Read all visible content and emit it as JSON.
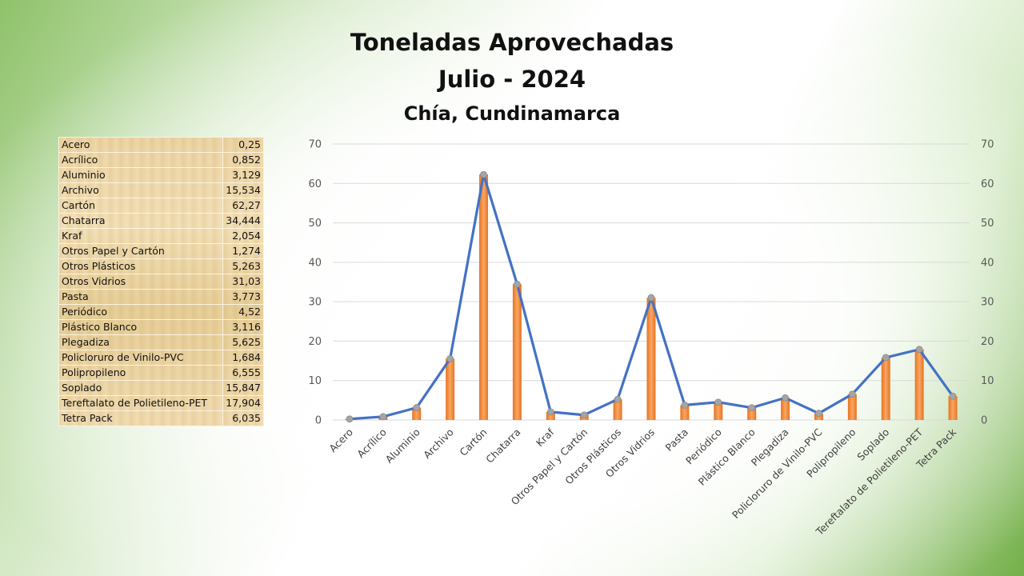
{
  "title": {
    "line1": "Toneladas Aprovechadas",
    "line2": "Julio - 2024",
    "subtitle": "Chía, Cundinamarca"
  },
  "table": [
    {
      "name": "Acero",
      "value": "0,25"
    },
    {
      "name": "Acrílico",
      "value": "0,852"
    },
    {
      "name": "Aluminio",
      "value": "3,129"
    },
    {
      "name": "Archivo",
      "value": "15,534"
    },
    {
      "name": "Cartón",
      "value": "62,27"
    },
    {
      "name": "Chatarra",
      "value": "34,444"
    },
    {
      "name": "Kraf",
      "value": "2,054"
    },
    {
      "name": "Otros Papel y Cartón",
      "value": "1,274"
    },
    {
      "name": "Otros Plásticos",
      "value": "5,263"
    },
    {
      "name": "Otros Vidrios",
      "value": "31,03"
    },
    {
      "name": "Pasta",
      "value": "3,773"
    },
    {
      "name": "Periódico",
      "value": "4,52"
    },
    {
      "name": "Plástico Blanco",
      "value": "3,116"
    },
    {
      "name": "Plegadiza",
      "value": "5,625"
    },
    {
      "name": "Policloruro de Vinilo-PVC",
      "value": "1,684"
    },
    {
      "name": "Polipropileno",
      "value": "6,555"
    },
    {
      "name": "Soplado",
      "value": "15,847"
    },
    {
      "name": "Tereftalato de Polietileno-PET",
      "value": "17,904"
    },
    {
      "name": "Tetra Pack",
      "value": "6,035"
    }
  ],
  "chart_data": {
    "type": "bar",
    "title": "Toneladas Aprovechadas Julio - 2024",
    "subtitle": "Chía, Cundinamarca",
    "categories": [
      "Acero",
      "Acrílico",
      "Aluminio",
      "Archivo",
      "Cartón",
      "Chatarra",
      "Kraf",
      "Otros Papel y Cartón",
      "Otros Plásticos",
      "Otros Vidrios",
      "Pasta",
      "Periódico",
      "Plástico Blanco",
      "Plegadiza",
      "Policloruro de Vinilo-PVC",
      "Polipropileno",
      "Soplado",
      "Tereftalato de Polietileno-PET",
      "Tetra Pack"
    ],
    "series": [
      {
        "type": "bar",
        "values": [
          0.25,
          0.852,
          3.129,
          15.534,
          62.27,
          34.444,
          2.054,
          1.274,
          5.263,
          31.03,
          3.773,
          4.52,
          3.116,
          5.625,
          1.684,
          6.555,
          15.847,
          17.904,
          6.035
        ]
      },
      {
        "type": "line",
        "values": [
          0.25,
          0.852,
          3.129,
          15.534,
          62.27,
          34.444,
          2.054,
          1.274,
          5.263,
          31.03,
          3.773,
          4.52,
          3.116,
          5.625,
          1.684,
          6.555,
          15.847,
          17.904,
          6.035
        ]
      }
    ],
    "ylim": [
      0,
      70
    ],
    "y2lim": [
      0,
      70
    ],
    "yticks": [
      0,
      10,
      20,
      30,
      40,
      50,
      60,
      70
    ],
    "grid": true,
    "legend": "none",
    "colors": {
      "bar": "#ed7d31",
      "bar_light": "#f8b07a",
      "line": "#4472c4",
      "marker": "#a5a5a5",
      "grid": "#d9d9d9"
    }
  }
}
